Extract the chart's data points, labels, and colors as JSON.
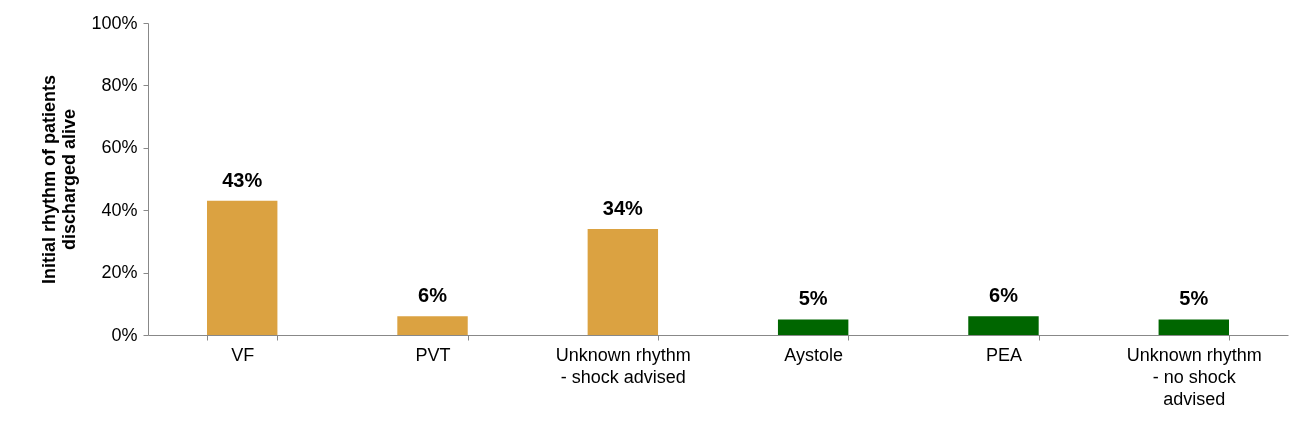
{
  "chart_data": {
    "type": "bar",
    "ylabel": "Initial rhythm of patients discharged alive",
    "categories": [
      "VF",
      "PVT",
      "Unknown rhythm - shock advised",
      "Aystole",
      "PEA",
      "Unknown rhythm - no shock advised"
    ],
    "values": [
      43,
      6,
      34,
      5,
      6,
      5
    ],
    "colors": [
      "#dba241",
      "#dba241",
      "#dba241",
      "#006600",
      "#006600",
      "#006600"
    ],
    "value_labels": [
      "43%",
      "6%",
      "34%",
      "5%",
      "6%",
      "5%"
    ],
    "ylim": [
      0,
      100
    ],
    "yticks": [
      {
        "value": 0,
        "label": "0%"
      },
      {
        "value": 20,
        "label": "20%"
      },
      {
        "value": 40,
        "label": "40%"
      },
      {
        "value": 60,
        "label": "60%"
      },
      {
        "value": 80,
        "label": "80%"
      },
      {
        "value": 100,
        "label": "100%"
      }
    ],
    "grid": false
  }
}
